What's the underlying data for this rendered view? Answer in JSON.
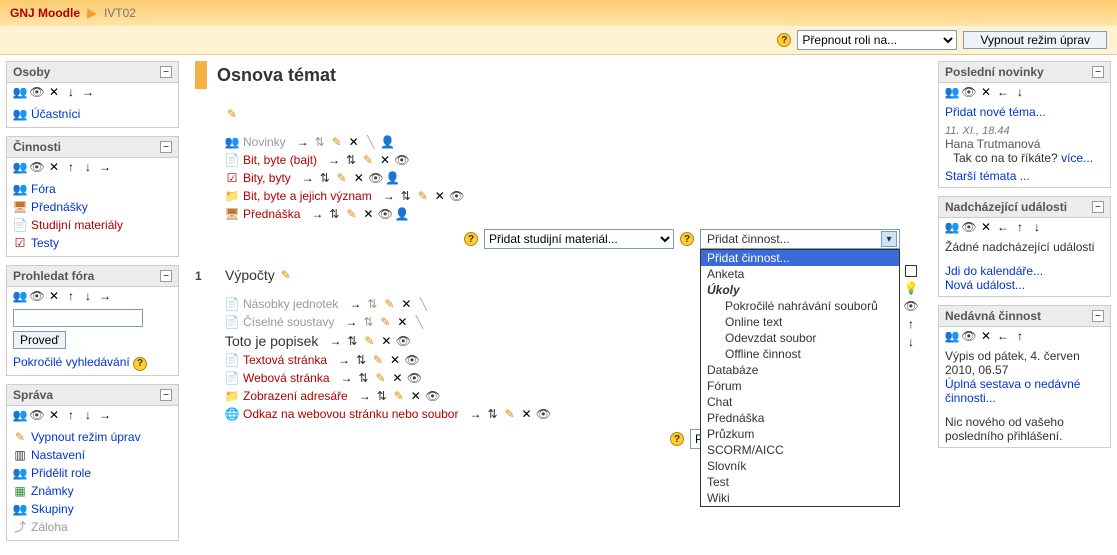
{
  "breadcrumb": {
    "root": "GNJ Moodle",
    "current": "IVT02"
  },
  "header": {
    "role_select_placeholder": "Přepnout roli na...",
    "edit_button": "Vypnout režim úprav"
  },
  "left": {
    "osoby": {
      "title": "Osoby",
      "items": [
        {
          "label": "Účastníci"
        }
      ]
    },
    "cinnosti": {
      "title": "Činnosti",
      "items": [
        {
          "label": "Fóra"
        },
        {
          "label": "Přednášky"
        },
        {
          "label": "Studijní materiály",
          "red": true
        },
        {
          "label": "Testy"
        }
      ]
    },
    "search": {
      "title": "Prohledat fóra",
      "button": "Proveď",
      "adv": "Pokročilé vyhledávání"
    },
    "sprava": {
      "title": "Správa",
      "items": [
        {
          "label": "Vypnout režim úprav"
        },
        {
          "label": "Nastavení"
        },
        {
          "label": "Přidělit role"
        },
        {
          "label": "Známky"
        },
        {
          "label": "Skupiny"
        },
        {
          "label": "Záloha",
          "dim": true
        }
      ]
    }
  },
  "right": {
    "news": {
      "title": "Poslední novinky",
      "add": "Přidat nové téma...",
      "date": "11. XI., 18.44",
      "author": "Hana Trutmanová",
      "post": "Tak co na to říkáte?",
      "more": "více...",
      "older": "Starší témata ..."
    },
    "events": {
      "title": "Nadcházející události",
      "none": "Žádné nadcházející události",
      "calendar": "Jdi do kalendáře...",
      "new": "Nová událost..."
    },
    "recent": {
      "title": "Nedávná činnost",
      "since": "Výpis od pátek, 4. červen 2010, 06.57",
      "full": "Úplná sestava o nedávné činnosti...",
      "nothing": "Nic nového od vašeho posledního přihlášení."
    }
  },
  "main": {
    "title": "Osnova témat",
    "topic0": {
      "items": [
        {
          "icon": "forum",
          "label": "Novinky",
          "dim": true
        },
        {
          "icon": "doc",
          "label": "Bit, byte (bajt)"
        },
        {
          "icon": "test",
          "label": "Bity, byty"
        },
        {
          "icon": "folder",
          "label": "Bit, byte a jejich význam"
        },
        {
          "icon": "monitor",
          "label": "Přednáška"
        }
      ]
    },
    "topic1": {
      "num": "1",
      "heading": "Výpočty",
      "dim_items": [
        {
          "label": "Násobky jednotek"
        },
        {
          "label": "Číselné soustavy"
        }
      ],
      "label_text": "Toto je popisek",
      "items": [
        {
          "icon": "doc",
          "label": "Textová stránka"
        },
        {
          "icon": "doc",
          "label": "Webová stránka"
        },
        {
          "icon": "folder",
          "label": "Zobrazení adresáře"
        },
        {
          "icon": "globe",
          "label": "Odkaz na webovou stránku nebo soubor"
        }
      ]
    },
    "add_material": "Přidat studijní materiál...",
    "add_activity_label": "Přidat činnost...",
    "activity_menu": [
      {
        "label": "Přidat činnost...",
        "selected": true
      },
      {
        "label": "Anketa"
      },
      {
        "label": "Úkoly",
        "group": true
      },
      {
        "label": "Pokročilé nahrávání souborů",
        "indent": true
      },
      {
        "label": "Online text",
        "indent": true
      },
      {
        "label": "Odevzdat soubor",
        "indent": true
      },
      {
        "label": "Offline činnost",
        "indent": true
      },
      {
        "label": "Databáze"
      },
      {
        "label": "Fórum"
      },
      {
        "label": "Chat"
      },
      {
        "label": "Přednáška"
      },
      {
        "label": "Průzkum"
      },
      {
        "label": "SCORM/AICC"
      },
      {
        "label": "Slovník"
      },
      {
        "label": "Test"
      },
      {
        "label": "Wiki"
      }
    ]
  }
}
